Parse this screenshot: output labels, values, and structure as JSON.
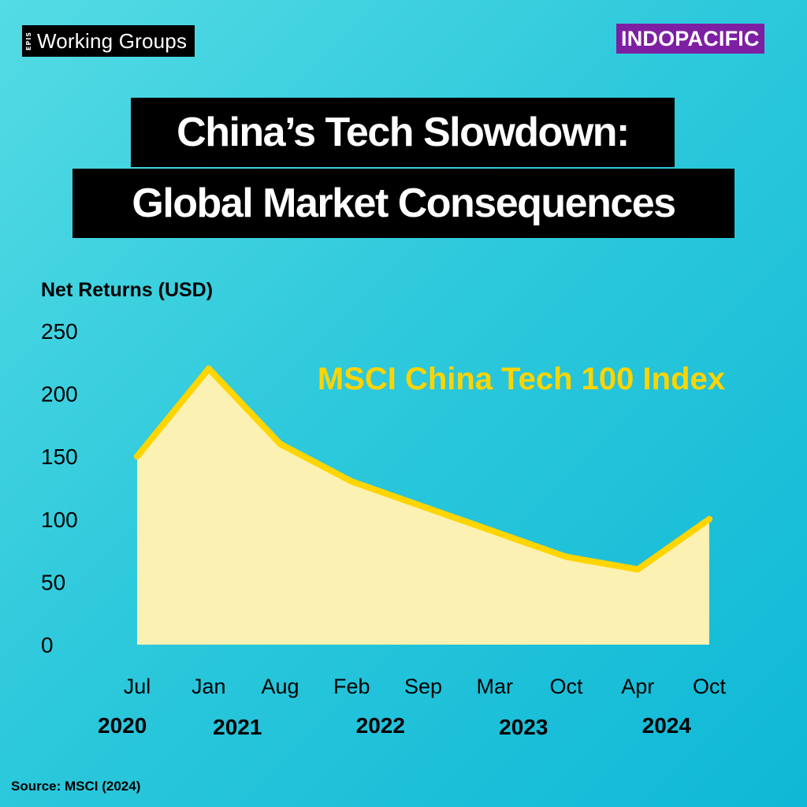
{
  "header": {
    "brand_mark": "EPIS",
    "brand_name": "Working Groups",
    "region_badge": "INDOPACIFIC"
  },
  "title": {
    "line1": "China’s Tech Slowdown:",
    "line2": "Global Market Consequences"
  },
  "chart_data": {
    "type": "area",
    "title": "",
    "ylabel": "Net Returns (USD)",
    "xlabel": "",
    "ylim": [
      0,
      250
    ],
    "yticks": [
      0,
      50,
      100,
      150,
      200,
      250
    ],
    "grid": false,
    "series": [
      {
        "name": "MSCI China Tech 100 Index",
        "values": [
          150,
          220,
          160,
          130,
          110,
          90,
          70,
          60,
          100
        ],
        "line_color": "#ffd500",
        "fill_color": "#fbf1b2"
      }
    ],
    "categories": [
      "Jul",
      "Jan",
      "Aug",
      "Feb",
      "Sep",
      "Mar",
      "Oct",
      "Apr",
      "Oct"
    ],
    "years": [
      {
        "label": "2020",
        "index": 0
      },
      {
        "label": "2021",
        "index": 1.5
      },
      {
        "label": "2022",
        "index": 3.5
      },
      {
        "label": "2023",
        "index": 5.5
      },
      {
        "label": "2024",
        "index": 7.5
      }
    ],
    "legend": "in-plot, top-right"
  },
  "footer": {
    "source": "Source: MSCI (2024)"
  }
}
